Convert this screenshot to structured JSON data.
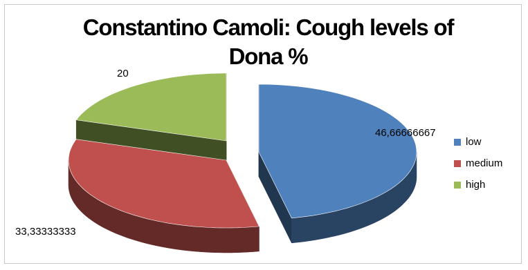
{
  "chart_data": {
    "type": "pie",
    "variant": "3d-exploded",
    "title_lines": [
      "Constantino Camoli: Cough levels of",
      "Dona %"
    ],
    "categories": [
      "low",
      "medium",
      "high"
    ],
    "values": [
      46.66666667,
      33.33333333,
      20
    ],
    "data_labels": [
      "46,66666667",
      "33,33333333",
      "20"
    ],
    "colors": [
      "#4F81BD",
      "#C0504D",
      "#9BBB59"
    ],
    "legend_position": "right"
  }
}
